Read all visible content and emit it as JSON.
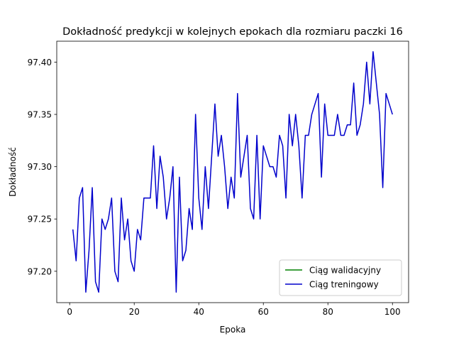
{
  "chart_data": {
    "type": "line",
    "title": "Dokładność predykcji w kolejnych epokach dla rozmiaru paczki 16",
    "xlabel": "Epoka",
    "ylabel": "Dokładność",
    "xlim": [
      -4,
      105
    ],
    "ylim": [
      97.17,
      97.42
    ],
    "xticks": [
      0,
      20,
      40,
      60,
      80,
      100
    ],
    "yticks": [
      97.2,
      97.25,
      97.3,
      97.35,
      97.4
    ],
    "ytick_labels": [
      "97.20",
      "97.25",
      "97.30",
      "97.35",
      "97.40"
    ],
    "grid": false,
    "legend_position": "lower-right",
    "series": [
      {
        "name": "Ciąg walidacyjny",
        "color": "#008000",
        "x": [],
        "values": []
      },
      {
        "name": "Ciąg treningowy",
        "color": "#0000cc",
        "x": [
          1,
          2,
          3,
          4,
          5,
          6,
          7,
          8,
          9,
          10,
          11,
          12,
          13,
          14,
          15,
          16,
          17,
          18,
          19,
          20,
          21,
          22,
          23,
          24,
          25,
          26,
          27,
          28,
          29,
          30,
          31,
          32,
          33,
          34,
          35,
          36,
          37,
          38,
          39,
          40,
          41,
          42,
          43,
          44,
          45,
          46,
          47,
          48,
          49,
          50,
          51,
          52,
          53,
          54,
          55,
          56,
          57,
          58,
          59,
          60,
          61,
          62,
          63,
          64,
          65,
          66,
          67,
          68,
          69,
          70,
          71,
          72,
          73,
          74,
          75,
          76,
          77,
          78,
          79,
          80,
          81,
          82,
          83,
          84,
          85,
          86,
          87,
          88,
          89,
          90,
          91,
          92,
          93,
          94,
          95,
          96,
          97,
          98,
          99,
          100
        ],
        "values": [
          97.24,
          97.21,
          97.27,
          97.28,
          97.18,
          97.22,
          97.28,
          97.19,
          97.18,
          97.25,
          97.24,
          97.25,
          97.27,
          97.2,
          97.19,
          97.27,
          97.23,
          97.25,
          97.21,
          97.2,
          97.24,
          97.23,
          97.27,
          97.27,
          97.27,
          97.32,
          97.26,
          97.31,
          97.29,
          97.25,
          97.27,
          97.3,
          97.18,
          97.29,
          97.21,
          97.22,
          97.26,
          97.24,
          97.35,
          97.27,
          97.24,
          97.3,
          97.26,
          97.31,
          97.36,
          97.31,
          97.33,
          97.3,
          97.26,
          97.29,
          97.27,
          97.37,
          97.29,
          97.31,
          97.33,
          97.26,
          97.25,
          97.33,
          97.25,
          97.32,
          97.31,
          97.3,
          97.3,
          97.29,
          97.33,
          97.32,
          97.27,
          97.35,
          97.32,
          97.35,
          97.32,
          97.27,
          97.33,
          97.33,
          97.35,
          97.36,
          97.37,
          97.29,
          97.36,
          97.33,
          97.33,
          97.33,
          97.35,
          97.33,
          97.33,
          97.34,
          97.34,
          97.38,
          97.33,
          97.34,
          97.36,
          97.4,
          97.36,
          97.41,
          97.38,
          97.35,
          97.28,
          97.37,
          97.36,
          97.35
        ]
      }
    ]
  }
}
